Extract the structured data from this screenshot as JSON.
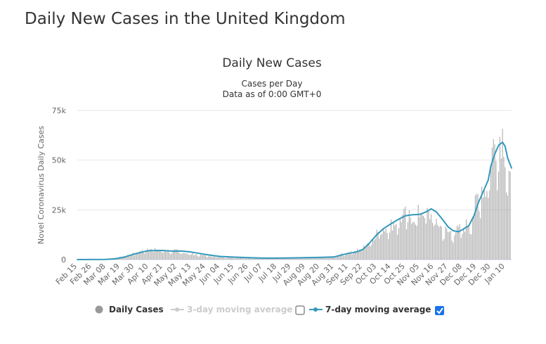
{
  "page": {
    "title": "Daily New Cases in the United Kingdom"
  },
  "chart_data": {
    "type": "bar",
    "title": "Daily New Cases",
    "subtitle_line1": "Cases per Day",
    "subtitle_line2": "Data as of 0:00 GMT+0",
    "ylabel": "Novel Coronavirus Daily Cases",
    "xlabel": "",
    "ylim": [
      0,
      75000
    ],
    "yticks": [
      0,
      25000,
      50000,
      75000
    ],
    "ytick_labels": [
      "0",
      "25k",
      "50k",
      "75k"
    ],
    "grid": true,
    "legend_position": "bottom",
    "x_tick_labels": [
      "Feb 15",
      "Feb 26",
      "Mar 08",
      "Mar 19",
      "Mar 30",
      "Apr 10",
      "Apr 21",
      "May 02",
      "May 13",
      "May 24",
      "Jun 04",
      "Jun 15",
      "Jun 26",
      "Jul 07",
      "Jul 18",
      "Jul 29",
      "Aug 09",
      "Aug 20",
      "Aug 31",
      "Sep 11",
      "Sep 22",
      "Oct 03",
      "Oct 14",
      "Oct 25",
      "Nov 05",
      "Nov 16",
      "Nov 27",
      "Dec 08",
      "Dec 19",
      "Dec 30",
      "Jan 10"
    ],
    "x_range": [
      "2020-02-15",
      "2021-01-15"
    ],
    "colors": {
      "bars": "#a6a6a6",
      "moving_avg": "#3399bb",
      "grid": "#e6e6e6",
      "axis_text": "#666666",
      "legend_disabled": "#cccccc",
      "checkbox_checked": "#1a73e8"
    },
    "series": [
      {
        "name": "Daily Cases",
        "kind": "bar",
        "x": [
          "2020-02-15",
          "2020-03-01",
          "2020-03-10",
          "2020-03-19",
          "2020-03-25",
          "2020-03-30",
          "2020-04-05",
          "2020-04-10",
          "2020-04-15",
          "2020-04-21",
          "2020-04-27",
          "2020-05-02",
          "2020-05-08",
          "2020-05-13",
          "2020-05-18",
          "2020-05-24",
          "2020-06-04",
          "2020-06-15",
          "2020-06-26",
          "2020-07-07",
          "2020-07-18",
          "2020-07-29",
          "2020-08-09",
          "2020-08-20",
          "2020-08-31",
          "2020-09-06",
          "2020-09-11",
          "2020-09-17",
          "2020-09-22",
          "2020-09-27",
          "2020-10-03",
          "2020-10-08",
          "2020-10-14",
          "2020-10-19",
          "2020-10-25",
          "2020-10-31",
          "2020-11-05",
          "2020-11-08",
          "2020-11-12",
          "2020-11-16",
          "2020-11-21",
          "2020-11-27",
          "2020-12-02",
          "2020-12-08",
          "2020-12-13",
          "2020-12-17",
          "2020-12-19",
          "2020-12-23",
          "2020-12-26",
          "2020-12-29",
          "2020-12-30",
          "2021-01-01",
          "2021-01-04",
          "2021-01-07",
          "2021-01-09",
          "2021-01-10",
          "2021-01-12",
          "2021-01-14"
        ],
        "values": [
          0,
          30,
          400,
          1300,
          2200,
          3200,
          4500,
          6000,
          5000,
          4800,
          4200,
          4600,
          3500,
          3000,
          2600,
          2100,
          1400,
          1100,
          800,
          650,
          700,
          800,
          1000,
          1100,
          1400,
          2800,
          3500,
          4500,
          6500,
          9000,
          14000,
          16000,
          18000,
          20000,
          23000,
          22000,
          24000,
          26000,
          23000,
          22000,
          17000,
          14000,
          14500,
          16000,
          19000,
          25000,
          30000,
          38000,
          35000,
          48000,
          53000,
          58000,
          62000,
          65000,
          63000,
          57000,
          47000,
          38000
        ]
      },
      {
        "name": "7-day moving average",
        "kind": "line",
        "x": [
          "2020-02-15",
          "2020-03-08",
          "2020-03-15",
          "2020-03-22",
          "2020-03-30",
          "2020-04-05",
          "2020-04-10",
          "2020-04-20",
          "2020-04-30",
          "2020-05-05",
          "2020-05-13",
          "2020-05-24",
          "2020-06-04",
          "2020-06-15",
          "2020-06-26",
          "2020-07-07",
          "2020-07-18",
          "2020-07-29",
          "2020-08-09",
          "2020-08-20",
          "2020-08-31",
          "2020-09-05",
          "2020-09-11",
          "2020-09-17",
          "2020-09-22",
          "2020-09-27",
          "2020-10-03",
          "2020-10-08",
          "2020-10-14",
          "2020-10-19",
          "2020-10-25",
          "2020-10-30",
          "2020-11-05",
          "2020-11-10",
          "2020-11-14",
          "2020-11-18",
          "2020-11-23",
          "2020-11-27",
          "2020-12-01",
          "2020-12-05",
          "2020-12-08",
          "2020-12-13",
          "2020-12-17",
          "2020-12-20",
          "2020-12-24",
          "2020-12-28",
          "2020-12-30",
          "2021-01-02",
          "2021-01-05",
          "2021-01-08",
          "2021-01-10",
          "2021-01-12",
          "2021-01-15"
        ],
        "values": [
          0,
          100,
          400,
          1200,
          2800,
          3800,
          4500,
          4600,
          4200,
          4300,
          3800,
          2600,
          1600,
          1250,
          1000,
          750,
          750,
          850,
          1000,
          1100,
          1300,
          2200,
          3100,
          3800,
          5000,
          8000,
          12500,
          15500,
          18000,
          20000,
          22000,
          22500,
          22700,
          24000,
          25500,
          24000,
          20000,
          16500,
          14500,
          14000,
          15000,
          17000,
          22000,
          28000,
          34000,
          40000,
          47000,
          53000,
          57500,
          59000,
          57000,
          51000,
          46000
        ]
      }
    ],
    "legend": [
      {
        "label": "Daily Cases",
        "enabled": true
      },
      {
        "label": "3-day moving average",
        "enabled": false,
        "checked": false
      },
      {
        "label": "7-day moving average",
        "enabled": true,
        "checked": true
      }
    ]
  }
}
